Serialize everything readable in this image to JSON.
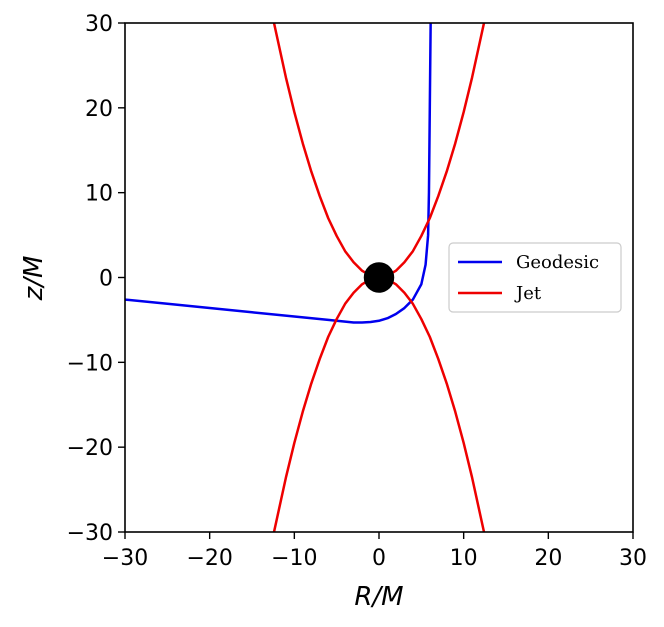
{
  "chart_data": {
    "type": "line",
    "xlabel": "R/M",
    "ylabel": "z/M",
    "xlim": [
      -30,
      30
    ],
    "ylim": [
      -30,
      30
    ],
    "xticks": [
      -30,
      -20,
      -10,
      0,
      10,
      20,
      30
    ],
    "yticks": [
      -30,
      -20,
      -10,
      0,
      10,
      20,
      30
    ],
    "tick_labels_x": [
      "−30",
      "−20",
      "−10",
      "0",
      "10",
      "20",
      "30"
    ],
    "tick_labels_y": [
      "−30",
      "−20",
      "−10",
      "0",
      "10",
      "20",
      "30"
    ],
    "grid": false,
    "legend_placement": "center-right",
    "legend": [
      {
        "label": "Geodesic",
        "color": "#0000ee"
      },
      {
        "label": "Jet",
        "color": "#ee0000"
      }
    ],
    "black_hole": {
      "x": 0,
      "y": 0,
      "radius": 1.8,
      "color": "#000000"
    },
    "series": [
      {
        "name": "Geodesic",
        "color": "#0000ee",
        "x": [
          -30,
          -25,
          -20,
          -15,
          -10,
          -6,
          -4,
          -3,
          -2,
          -1,
          0,
          1,
          2,
          3,
          4,
          5,
          5.5,
          5.8,
          5.9,
          5.95,
          6,
          6.05,
          6.1
        ],
        "y": [
          -2.6,
          -3.1,
          -3.6,
          -4.1,
          -4.6,
          -5.0,
          -5.2,
          -5.3,
          -5.3,
          -5.25,
          -5.1,
          -4.8,
          -4.3,
          -3.6,
          -2.6,
          -0.8,
          1.5,
          5,
          10,
          15,
          20,
          25,
          30
        ]
      },
      {
        "name": "Jet upper",
        "color": "#ee0000",
        "x": [
          -12.4,
          -11,
          -10,
          -9,
          -8,
          -7,
          -6,
          -5,
          -4,
          -3,
          -2,
          -1,
          0,
          1,
          2,
          3,
          4,
          5,
          6,
          7,
          8,
          9,
          10,
          11,
          12.4
        ],
        "y": [
          30,
          23.6,
          19.5,
          15.8,
          12.5,
          9.6,
          7.0,
          4.9,
          3.1,
          1.8,
          0.8,
          0.2,
          0,
          0.2,
          0.8,
          1.8,
          3.1,
          4.9,
          7.0,
          9.6,
          12.5,
          15.8,
          19.5,
          23.6,
          30
        ]
      },
      {
        "name": "Jet lower",
        "color": "#ee0000",
        "x": [
          -12.4,
          -11,
          -10,
          -9,
          -8,
          -7,
          -6,
          -5,
          -4,
          -3,
          -2,
          -1,
          0,
          1,
          2,
          3,
          4,
          5,
          6,
          7,
          8,
          9,
          10,
          11,
          12.4
        ],
        "y": [
          -30,
          -23.6,
          -19.5,
          -15.8,
          -12.5,
          -9.6,
          -7.0,
          -4.9,
          -3.1,
          -1.8,
          -0.8,
          -0.2,
          0,
          -0.2,
          -0.8,
          -1.8,
          -3.1,
          -4.9,
          -7.0,
          -9.6,
          -12.5,
          -15.8,
          -19.5,
          -23.6,
          -30
        ]
      }
    ]
  }
}
